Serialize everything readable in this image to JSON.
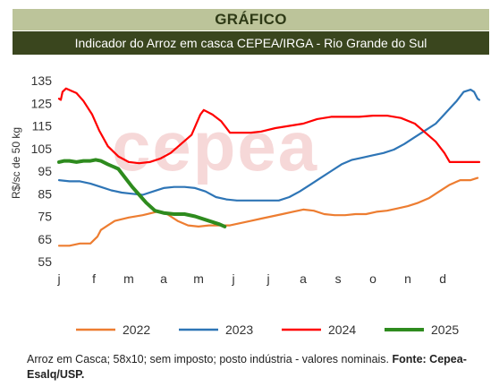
{
  "header": {
    "section": "GRÁFICO",
    "title": "Indicador do Arroz em casca CEPEA/IRGA - Rio Grande do Sul"
  },
  "watermark": "cepea",
  "colors": {
    "header_light": "#bcc49a",
    "header_dark": "#3a461e",
    "s2022": "#ed7d31",
    "s2023": "#2e75b6",
    "s2024": "#ff0000",
    "s2025": "#2e8b1e"
  },
  "chart_data": {
    "type": "line",
    "title": "Indicador do Arroz em casca CEPEA/IRGA - Rio Grande do Sul",
    "ylabel": "R$/sc de 50 kg",
    "xlabel": "",
    "ylim": [
      55,
      135
    ],
    "yticks": [
      55,
      65,
      75,
      85,
      95,
      105,
      115,
      125,
      135
    ],
    "x_ticks": [
      "j",
      "f",
      "m",
      "a",
      "m",
      "j",
      "j",
      "a",
      "s",
      "o",
      "n",
      "d"
    ],
    "x_unit": "month (1 = janeiro)",
    "legend_position": "bottom",
    "series": [
      {
        "name": "2022",
        "color": "#ed7d31",
        "points": [
          [
            1,
            62
          ],
          [
            1.3,
            62
          ],
          [
            1.6,
            63
          ],
          [
            1.9,
            63
          ],
          [
            2.1,
            66
          ],
          [
            2.2,
            69
          ],
          [
            2.4,
            71
          ],
          [
            2.6,
            73
          ],
          [
            3,
            74.5
          ],
          [
            3.4,
            75.5
          ],
          [
            3.8,
            77
          ],
          [
            4.1,
            76
          ],
          [
            4.4,
            73
          ],
          [
            4.7,
            71
          ],
          [
            5,
            70.5
          ],
          [
            5.3,
            71
          ],
          [
            5.6,
            71
          ],
          [
            5.9,
            71
          ],
          [
            6.2,
            72
          ],
          [
            6.5,
            73
          ],
          [
            6.8,
            74
          ],
          [
            7.1,
            75
          ],
          [
            7.4,
            76
          ],
          [
            7.7,
            77
          ],
          [
            8,
            78
          ],
          [
            8.3,
            77.5
          ],
          [
            8.6,
            76
          ],
          [
            8.9,
            75.5
          ],
          [
            9.2,
            75.5
          ],
          [
            9.5,
            76
          ],
          [
            9.8,
            76
          ],
          [
            10.1,
            77
          ],
          [
            10.4,
            77.5
          ],
          [
            10.7,
            78.5
          ],
          [
            11,
            79.5
          ],
          [
            11.3,
            81
          ],
          [
            11.6,
            83
          ],
          [
            11.9,
            86
          ],
          [
            12.2,
            89
          ],
          [
            12.5,
            91
          ],
          [
            12.8,
            91
          ],
          [
            13,
            92
          ]
        ]
      },
      {
        "name": "2023",
        "color": "#2e75b6",
        "points": [
          [
            1,
            91
          ],
          [
            1.3,
            90.5
          ],
          [
            1.6,
            90.5
          ],
          [
            1.9,
            89.5
          ],
          [
            2.2,
            88
          ],
          [
            2.5,
            86.5
          ],
          [
            2.8,
            85.5
          ],
          [
            3.1,
            85
          ],
          [
            3.4,
            84.5
          ],
          [
            3.7,
            86
          ],
          [
            4,
            87.5
          ],
          [
            4.3,
            88
          ],
          [
            4.6,
            88
          ],
          [
            4.9,
            87.5
          ],
          [
            5.2,
            86
          ],
          [
            5.5,
            83.5
          ],
          [
            5.8,
            82.5
          ],
          [
            6.1,
            82
          ],
          [
            6.4,
            82
          ],
          [
            6.7,
            82
          ],
          [
            7,
            82
          ],
          [
            7.3,
            82
          ],
          [
            7.6,
            83.5
          ],
          [
            7.9,
            86
          ],
          [
            8.2,
            89
          ],
          [
            8.5,
            92
          ],
          [
            8.8,
            95
          ],
          [
            9.1,
            98
          ],
          [
            9.4,
            100
          ],
          [
            9.7,
            101
          ],
          [
            10,
            102
          ],
          [
            10.3,
            103
          ],
          [
            10.6,
            104.5
          ],
          [
            10.9,
            107
          ],
          [
            11.2,
            110
          ],
          [
            11.5,
            113
          ],
          [
            11.8,
            116
          ],
          [
            12.1,
            121
          ],
          [
            12.4,
            126
          ],
          [
            12.6,
            130
          ],
          [
            12.8,
            131
          ],
          [
            12.9,
            130
          ],
          [
            13,
            127
          ],
          [
            13.05,
            126.5
          ]
        ]
      },
      {
        "name": "2024",
        "color": "#ff0000",
        "points": [
          [
            1,
            127
          ],
          [
            1.05,
            126.5
          ],
          [
            1.1,
            130
          ],
          [
            1.2,
            131.5
          ],
          [
            1.35,
            130.5
          ],
          [
            1.5,
            129.5
          ],
          [
            1.7,
            126
          ],
          [
            1.95,
            120
          ],
          [
            2.15,
            113
          ],
          [
            2.4,
            106
          ],
          [
            2.7,
            101.5
          ],
          [
            3,
            99
          ],
          [
            3.3,
            98.5
          ],
          [
            3.6,
            99
          ],
          [
            3.9,
            100.5
          ],
          [
            4.2,
            103
          ],
          [
            4.5,
            107
          ],
          [
            4.8,
            111
          ],
          [
            5.05,
            120
          ],
          [
            5.15,
            122
          ],
          [
            5.4,
            120
          ],
          [
            5.65,
            117
          ],
          [
            5.9,
            112
          ],
          [
            6.2,
            112
          ],
          [
            6.5,
            112
          ],
          [
            6.8,
            112.5
          ],
          [
            7.2,
            114
          ],
          [
            7.6,
            115
          ],
          [
            8,
            116
          ],
          [
            8.4,
            118
          ],
          [
            8.8,
            119
          ],
          [
            9.2,
            119
          ],
          [
            9.6,
            119
          ],
          [
            10,
            119.5
          ],
          [
            10.4,
            119.5
          ],
          [
            10.8,
            118.5
          ],
          [
            11.2,
            116
          ],
          [
            11.5,
            112
          ],
          [
            11.8,
            108
          ],
          [
            12.05,
            103
          ],
          [
            12.2,
            99
          ],
          [
            12.5,
            99
          ],
          [
            12.8,
            99
          ],
          [
            13.05,
            99
          ]
        ]
      },
      {
        "name": "2025",
        "color": "#2e8b1e",
        "points": [
          [
            1,
            99
          ],
          [
            1.15,
            99.5
          ],
          [
            1.3,
            99.5
          ],
          [
            1.5,
            99
          ],
          [
            1.7,
            99.5
          ],
          [
            1.9,
            99.5
          ],
          [
            2.05,
            100
          ],
          [
            2.2,
            99.5
          ],
          [
            2.4,
            98
          ],
          [
            2.7,
            96
          ],
          [
            2.9,
            92
          ],
          [
            3.1,
            88
          ],
          [
            3.3,
            84.5
          ],
          [
            3.5,
            81
          ],
          [
            3.75,
            77.5
          ],
          [
            4,
            76.5
          ],
          [
            4.3,
            76
          ],
          [
            4.6,
            76
          ],
          [
            4.9,
            75
          ],
          [
            5.2,
            73.5
          ],
          [
            5.4,
            72.5
          ],
          [
            5.6,
            71.5
          ],
          [
            5.75,
            70.5
          ]
        ]
      }
    ]
  },
  "footer": {
    "text": "Arroz em Casca; 58x10; sem imposto; posto indústria - valores nominais. ",
    "source": "Fonte: Cepea-Esalq/USP."
  }
}
